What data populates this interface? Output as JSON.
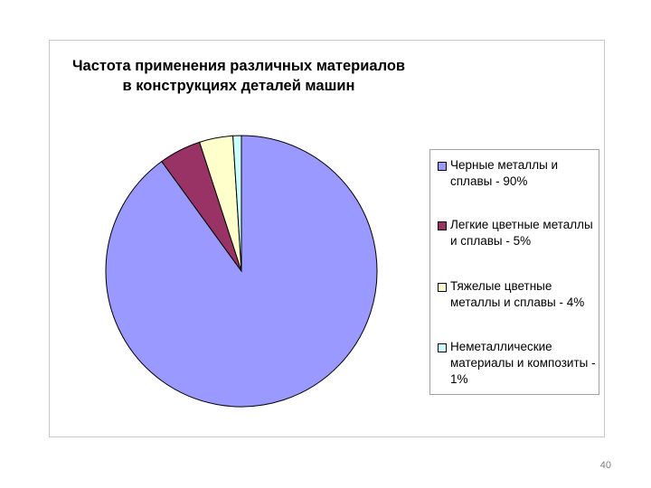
{
  "slide": {
    "page_number": "40"
  },
  "chart_data": {
    "type": "pie",
    "title_lines": [
      "Частота применения различных материалов",
      "в конструкциях деталей машин"
    ],
    "categories": [
      "Черные металлы и сплавы - 90%",
      "Легкие цветные металлы и сплавы - 5%",
      "Тяжелые цветные металлы и сплавы - 4%",
      "Неметаллические материалы и композиты - 1%"
    ],
    "values": [
      90,
      5,
      4,
      1
    ],
    "colors": [
      "#9999ff",
      "#993366",
      "#ffffcc",
      "#ccffff"
    ],
    "start_angle_deg": 0,
    "direction": "counterclockwise",
    "legend_placement": "right"
  }
}
